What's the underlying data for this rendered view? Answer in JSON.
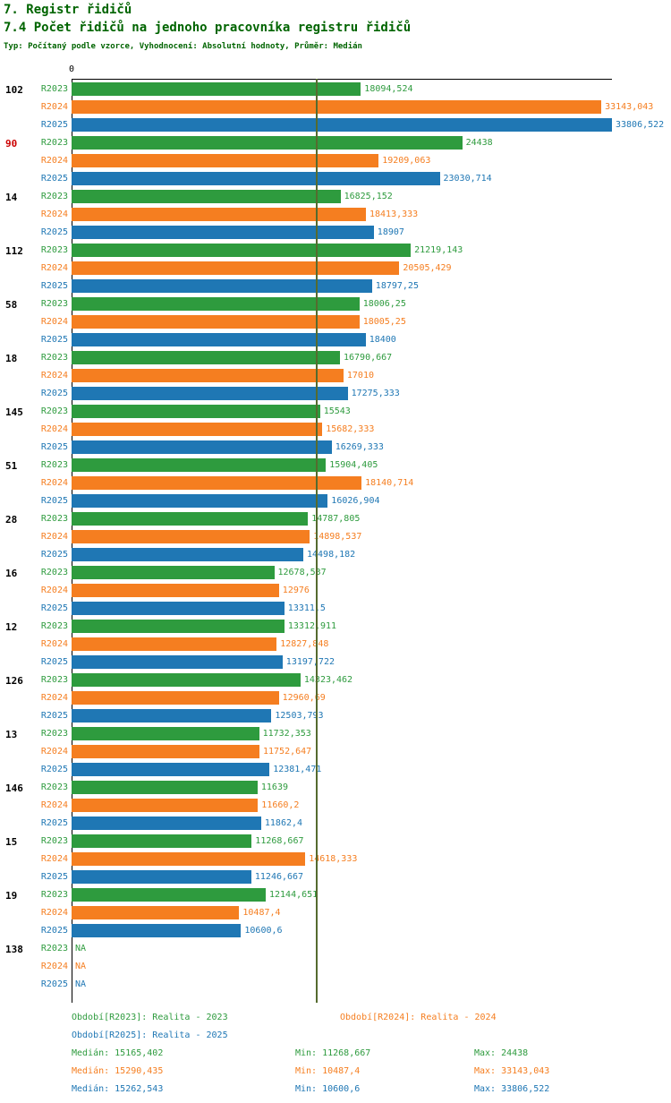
{
  "header": {
    "title1": "7. Registr řidičů",
    "title2": "7.4 Počet řidičů na jednoho pracovníka registru řidičů",
    "subtitle": "Typ: Počítaný podle vzorce, Vyhodnocení: Absolutní hodnoty, Průměr: Medián"
  },
  "colors": {
    "title": "#006400",
    "r2023": "#2e9b3e",
    "r2024": "#f57e20",
    "r2025": "#1f77b4",
    "highlight": "#cc0000",
    "median_line": "#556b2f"
  },
  "axis": {
    "zero_label": "0"
  },
  "chart_data": {
    "type": "bar",
    "orientation": "horizontal",
    "title": "7.4 Počet řidičů na jednoho pracovníka registru řidičů",
    "series": [
      "R2023",
      "R2024",
      "R2025"
    ],
    "max_value": 33806.522,
    "median_line_value": 15262.543,
    "groups": [
      {
        "label": "102",
        "highlight": false,
        "values": [
          18094.524,
          33143.043,
          33806.522
        ],
        "display": [
          "18094,524",
          "33143,043",
          "33806,522"
        ]
      },
      {
        "label": "90",
        "highlight": true,
        "values": [
          24438,
          19209.063,
          23030.714
        ],
        "display": [
          "24438",
          "19209,063",
          "23030,714"
        ]
      },
      {
        "label": "14",
        "highlight": false,
        "values": [
          16825.152,
          18413.333,
          18907
        ],
        "display": [
          "16825,152",
          "18413,333",
          "18907"
        ]
      },
      {
        "label": "112",
        "highlight": false,
        "values": [
          21219.143,
          20505.429,
          18797.25
        ],
        "display": [
          "21219,143",
          "20505,429",
          "18797,25"
        ]
      },
      {
        "label": "58",
        "highlight": false,
        "values": [
          18006.25,
          18005.25,
          18400
        ],
        "display": [
          "18006,25",
          "18005,25",
          "18400"
        ]
      },
      {
        "label": "18",
        "highlight": false,
        "values": [
          16790.667,
          17010,
          17275.333
        ],
        "display": [
          "16790,667",
          "17010",
          "17275,333"
        ]
      },
      {
        "label": "145",
        "highlight": false,
        "values": [
          15543,
          15682.333,
          16269.333
        ],
        "display": [
          "15543",
          "15682,333",
          "16269,333"
        ]
      },
      {
        "label": "51",
        "highlight": false,
        "values": [
          15904.405,
          18140.714,
          16026.904
        ],
        "display": [
          "15904,405",
          "18140,714",
          "16026,904"
        ]
      },
      {
        "label": "28",
        "highlight": false,
        "values": [
          14787.805,
          14898.537,
          14498.182
        ],
        "display": [
          "14787,805",
          "14898,537",
          "14498,182"
        ]
      },
      {
        "label": "16",
        "highlight": false,
        "values": [
          12678.537,
          12976,
          13311.5
        ],
        "display": [
          "12678,537",
          "12976",
          "13311,5"
        ]
      },
      {
        "label": "12",
        "highlight": false,
        "values": [
          13312.911,
          12827.848,
          13197.722
        ],
        "display": [
          "13312,911",
          "12827,848",
          "13197,722"
        ]
      },
      {
        "label": "126",
        "highlight": false,
        "values": [
          14323.462,
          12960.69,
          12503.793
        ],
        "display": [
          "14323,462",
          "12960,69",
          "12503,793"
        ]
      },
      {
        "label": "13",
        "highlight": false,
        "values": [
          11732.353,
          11752.647,
          12381.471
        ],
        "display": [
          "11732,353",
          "11752,647",
          "12381,471"
        ]
      },
      {
        "label": "146",
        "highlight": false,
        "values": [
          11639,
          11660.2,
          11862.4
        ],
        "display": [
          "11639",
          "11660,2",
          "11862,4"
        ]
      },
      {
        "label": "15",
        "highlight": false,
        "values": [
          11268.667,
          14618.333,
          11246.667
        ],
        "display": [
          "11268,667",
          "14618,333",
          "11246,667"
        ]
      },
      {
        "label": "19",
        "highlight": false,
        "values": [
          12144.651,
          10487.4,
          10600.6
        ],
        "display": [
          "12144,651",
          "10487,4",
          "10600,6"
        ]
      },
      {
        "label": "138",
        "highlight": false,
        "values": [
          null,
          null,
          null
        ],
        "display": [
          "NA",
          "NA",
          "NA"
        ]
      }
    ]
  },
  "footer": {
    "legend_r2023": "Období[R2023]: Realita - 2023",
    "legend_r2024": "Období[R2024]: Realita - 2024",
    "legend_r2025": "Období[R2025]: Realita - 2025",
    "stats": [
      {
        "median": "Medián: 15165,402",
        "min": "Min: 11268,667",
        "max": "Max: 24438"
      },
      {
        "median": "Medián: 15290,435",
        "min": "Min: 10487,4",
        "max": "Max: 33143,043"
      },
      {
        "median": "Medián: 15262,543",
        "min": "Min: 10600,6",
        "max": "Max: 33806,522"
      }
    ]
  }
}
